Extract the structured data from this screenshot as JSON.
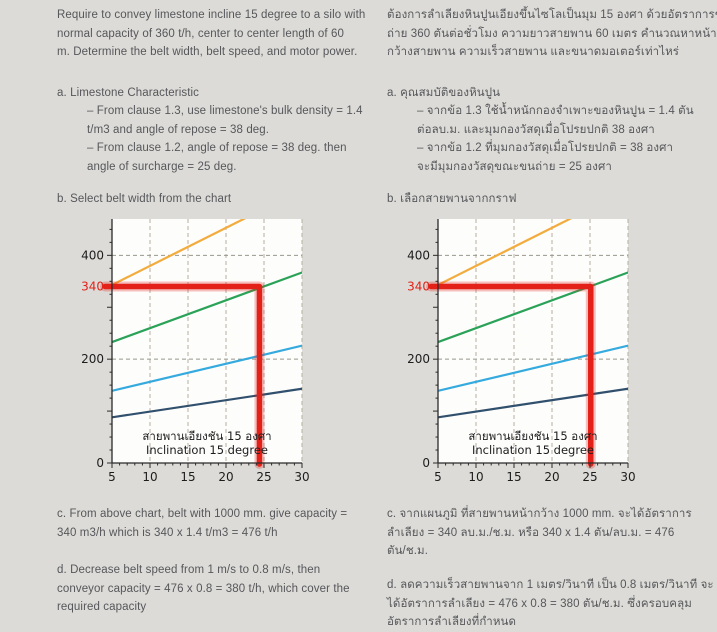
{
  "page": {
    "background": "#dcdbd7",
    "text_color": "#56575b",
    "accent_red": "#e42119"
  },
  "left_column": {
    "intro_lines": [
      "Require to convey limestone incline 15 degree to a silo with",
      "normal capacity of 360 t/h, center to center length of 60",
      "m. Determine the belt width, belt speed, and motor power."
    ],
    "section_a_title": "a. Limestone Characteristic",
    "section_a_lines": [
      "– From clause 1.3, use limestone's bulk density = 1.4",
      "t/m3 and angle of repose = 38 deg.",
      "– From clause 1.2, angle of repose = 38 deg. then",
      "angle of surcharge = 25 deg."
    ],
    "section_b_title": "b. Select belt width from the chart",
    "section_c_lines": [
      "c. From above chart, belt with 1000 mm. give capacity =",
      "340 m3/h which is 340 x 1.4 t/m3 = 476 t/h"
    ],
    "section_d_lines": [
      "d. Decrease belt speed from 1 m/s to 0.8 m/s, then",
      "conveyor capacity = 476 x 0.8 = 380 t/h, which cover the",
      "required capacity"
    ]
  },
  "right_column": {
    "intro_lines": [
      "ต้องการลำเลียงหินปูนเอียงขึ้นไซโลเป็นมุม 15 องศา ด้วยอัตราการขน",
      "ถ่าย 360 ตันต่อชั่วโมง ความยาวสายพาน 60 เมตร คำนวณหาหน้า",
      "กว้างสายพาน ความเร็วสายพาน และขนาดมอเตอร์เท่าไหร่"
    ],
    "section_a_title": "a. คุณสมบัติของหินปูน",
    "section_a_lines": [
      "– จากข้อ 1.3 ใช้น้ำหนักกองจำเพาะของหินปูน = 1.4 ตัน",
      "ต่อลบ.ม. และมุมกองวัสดุเมื่อโปรยปกติ 38 องศา",
      "– จากข้อ 1.2 ที่มุมกองวัสดุเมื่อโปรยปกติ = 38 องศา",
      "จะมีมุมกองวัสดุขณะขนถ่าย = 25 องศา"
    ],
    "section_b_title": "b. เลือกสายพานจากกราฟ",
    "section_c_lines": [
      "c. จากแผนภูมิ ที่สายพานหน้ากว้าง 1000 mm. จะได้อัตราการ",
      "ลำเลียง = 340 ลบ.ม./ช.ม. หรือ 340 x 1.4 ตัน/ลบ.ม. = 476",
      "ตัน/ช.ม."
    ],
    "section_d_lines": [
      "d. ลดความเร็วสายพานจาก 1 เมตร/วินาที เป็น 0.8 เมตร/วินาที จะ",
      "ได้อัตราการลำเลียง = 476 x 0.8 = 380 ตัน/ช.ม. ซึ่งครอบคลุม",
      "อัตราการลำเลียงที่กำหนด"
    ]
  },
  "chart_data": [
    {
      "type": "line",
      "title": "",
      "xlabel": "",
      "ylabel": "",
      "xlim": [
        5,
        30
      ],
      "ylim": [
        0,
        470
      ],
      "x_ticks": [
        5,
        10,
        15,
        20,
        25,
        30
      ],
      "x_minor_step": 1,
      "y_labeled_ticks": [
        0,
        200,
        400
      ],
      "y_minor_step": 25,
      "grid": {
        "vertical": [
          10,
          15,
          20,
          25,
          30
        ],
        "horizontal": [
          200,
          400
        ]
      },
      "series": [
        {
          "color": "#f3ab3c",
          "points": [
            [
              5,
              343
            ],
            [
              23,
              475
            ]
          ]
        },
        {
          "color": "#2aa257",
          "points": [
            [
              5,
              233
            ],
            [
              30,
              367
            ]
          ]
        },
        {
          "color": "#35aade",
          "points": [
            [
              5,
              139
            ],
            [
              30,
              226
            ]
          ]
        },
        {
          "color": "#31506d",
          "points": [
            [
              5,
              88
            ],
            [
              30,
              143
            ]
          ]
        }
      ],
      "red_marker": {
        "y": 340,
        "corner_x": 24.4,
        "label": "340",
        "color": "#e42119"
      },
      "annotation_line1": "สายพานเอียงชัน 15 องศา",
      "annotation_line2": "Inclination 15 degree"
    },
    {
      "type": "line",
      "title": "",
      "xlabel": "",
      "ylabel": "",
      "xlim": [
        5,
        30
      ],
      "ylim": [
        0,
        470
      ],
      "x_ticks": [
        5,
        10,
        15,
        20,
        25,
        30
      ],
      "x_minor_step": 1,
      "y_labeled_ticks": [
        0,
        200,
        400
      ],
      "y_minor_step": 25,
      "grid": {
        "vertical": [
          10,
          15,
          20,
          25,
          30
        ],
        "horizontal": [
          200,
          400
        ]
      },
      "series": [
        {
          "color": "#f3ab3c",
          "points": [
            [
              5,
              343
            ],
            [
              23,
              475
            ]
          ]
        },
        {
          "color": "#2aa257",
          "points": [
            [
              5,
              233
            ],
            [
              30,
              367
            ]
          ]
        },
        {
          "color": "#35aade",
          "points": [
            [
              5,
              139
            ],
            [
              30,
              226
            ]
          ]
        },
        {
          "color": "#31506d",
          "points": [
            [
              5,
              88
            ],
            [
              30,
              143
            ]
          ]
        }
      ],
      "red_marker": {
        "y": 340,
        "corner_x": 25.1,
        "label": "340",
        "color": "#e42119"
      },
      "annotation_line1": "สายพานเอียงชัน 15 องศา",
      "annotation_line2": "Inclination 15 degree"
    }
  ]
}
